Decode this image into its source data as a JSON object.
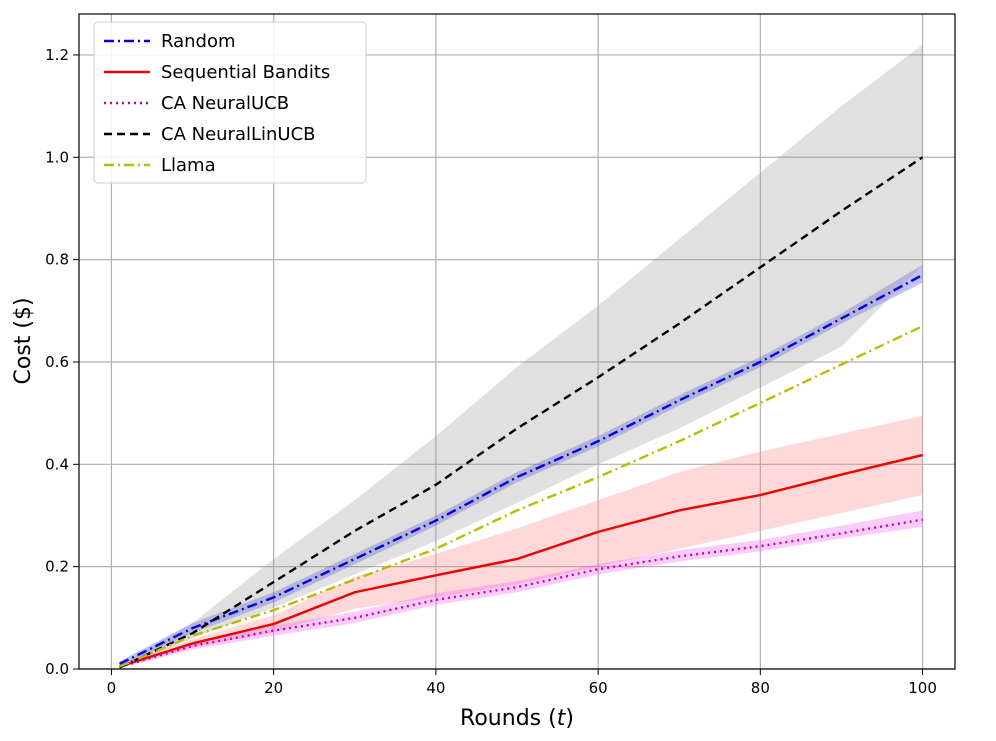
{
  "chart_data": {
    "type": "line",
    "xlabel": "Rounds (t)",
    "xlabel_main": "Rounds (",
    "xlabel_var": "t",
    "xlabel_end": ")",
    "ylabel": "Cost ($)",
    "xlim": [
      -4,
      104
    ],
    "ylim": [
      0,
      1.28
    ],
    "xticks": [
      0,
      20,
      40,
      60,
      80,
      100
    ],
    "yticks": [
      0.0,
      0.2,
      0.4,
      0.6,
      0.8,
      1.0,
      1.2
    ],
    "xtick_labels": [
      "0",
      "20",
      "40",
      "60",
      "80",
      "100"
    ],
    "ytick_labels": [
      "0.0",
      "0.2",
      "0.4",
      "0.6",
      "0.8",
      "1.0",
      "1.2"
    ],
    "grid": true,
    "legend_position": "top-left",
    "x": [
      1,
      10,
      20,
      30,
      40,
      50,
      60,
      70,
      80,
      90,
      100
    ],
    "series": [
      {
        "name": "Random",
        "color": "#0000ee",
        "style": "dashdot",
        "values": [
          0.01,
          0.08,
          0.14,
          0.215,
          0.29,
          0.375,
          0.445,
          0.525,
          0.6,
          0.685,
          0.77
        ],
        "band": {
          "color": "#3333dd",
          "lower": [
            0.005,
            0.07,
            0.13,
            0.205,
            0.28,
            0.365,
            0.435,
            0.515,
            0.59,
            0.675,
            0.755
          ],
          "upper": [
            0.015,
            0.09,
            0.15,
            0.225,
            0.3,
            0.385,
            0.455,
            0.535,
            0.61,
            0.695,
            0.79
          ]
        }
      },
      {
        "name": "Sequential Bandits",
        "color": "#ee0000",
        "style": "solid",
        "values": [
          0.005,
          0.05,
          0.088,
          0.15,
          0.183,
          0.215,
          0.268,
          0.31,
          0.34,
          0.38,
          0.418
        ],
        "band": {
          "color": "#ff8080",
          "lower": [
            0.003,
            0.042,
            0.072,
            0.118,
            0.14,
            0.165,
            0.2,
            0.235,
            0.27,
            0.305,
            0.34
          ],
          "upper": [
            0.008,
            0.058,
            0.105,
            0.18,
            0.225,
            0.275,
            0.33,
            0.385,
            0.425,
            0.46,
            0.495
          ]
        }
      },
      {
        "name": "CA NeuralUCB",
        "color": "#cc00aa",
        "style": "dotted",
        "values": [
          0.004,
          0.045,
          0.075,
          0.1,
          0.135,
          0.16,
          0.195,
          0.22,
          0.24,
          0.265,
          0.292
        ],
        "band": {
          "color": "#ee55ee",
          "lower": [
            0.002,
            0.038,
            0.065,
            0.09,
            0.125,
            0.15,
            0.185,
            0.21,
            0.23,
            0.255,
            0.278
          ],
          "upper": [
            0.007,
            0.052,
            0.085,
            0.112,
            0.148,
            0.172,
            0.205,
            0.232,
            0.252,
            0.28,
            0.31
          ]
        }
      },
      {
        "name": "CA NeuralLinUCB",
        "color": "#000000",
        "style": "dashed",
        "values": [
          0.003,
          0.07,
          0.17,
          0.27,
          0.36,
          0.47,
          0.57,
          0.675,
          0.785,
          0.895,
          1.0
        ],
        "band": {
          "color": "#999999",
          "lower": [
            0.001,
            0.06,
            0.12,
            0.185,
            0.25,
            0.325,
            0.4,
            0.47,
            0.55,
            0.63,
            0.79
          ],
          "upper": [
            0.006,
            0.09,
            0.215,
            0.33,
            0.455,
            0.59,
            0.71,
            0.84,
            0.97,
            1.1,
            1.22
          ]
        }
      },
      {
        "name": "Llama",
        "color": "#bbbb00",
        "style": "dashdot",
        "values": [
          0.005,
          0.065,
          0.115,
          0.175,
          0.235,
          0.31,
          0.375,
          0.445,
          0.52,
          0.595,
          0.67
        ]
      }
    ]
  }
}
